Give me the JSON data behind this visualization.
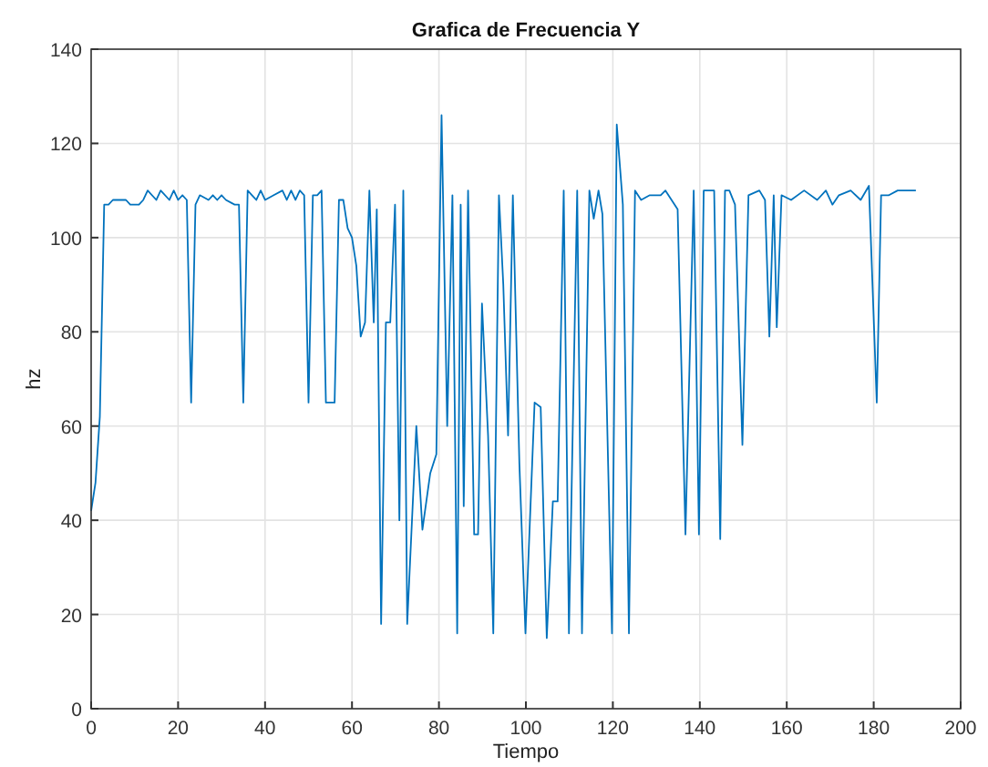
{
  "chart_data": {
    "type": "line",
    "title": "Grafica de Frecuencia Y",
    "xlabel": "Tiempo",
    "ylabel": "hz",
    "xlim": [
      0,
      200
    ],
    "xticks": [
      0,
      20,
      40,
      60,
      80,
      100,
      120,
      140,
      160,
      180,
      200
    ],
    "ylim": [
      0,
      140
    ],
    "yticks": [
      0,
      20,
      40,
      60,
      80,
      100,
      120,
      140
    ],
    "grid": true,
    "series": [
      {
        "color": "#0072bd",
        "x": [
          0,
          1,
          2,
          3,
          4,
          5,
          7,
          8,
          9,
          11,
          12,
          13,
          15,
          16,
          18,
          19,
          20,
          21,
          22,
          23,
          24,
          25,
          27,
          28,
          29,
          30,
          31,
          33,
          34,
          35,
          36,
          37,
          38,
          39,
          40,
          42,
          44,
          45,
          46,
          47,
          48,
          49,
          50,
          51,
          52,
          53,
          54,
          55,
          56,
          57,
          58,
          59,
          60,
          61,
          62,
          63,
          64,
          65,
          65.7,
          66.7,
          67.8,
          68.8,
          69.9,
          70.9,
          71.8,
          72.7,
          74.8,
          76.2,
          78,
          79.4,
          80.6,
          81.9,
          83.1,
          84.2,
          85,
          85.7,
          86.7,
          88.1,
          89,
          89.9,
          91.3,
          92.5,
          93.8,
          94.8,
          95.9,
          97,
          98.5,
          99.9,
          102,
          103.4,
          104.8,
          106.2,
          107.3,
          108.7,
          109.9,
          111.8,
          112.9,
          114.6,
          115.6,
          116.7,
          117.6,
          119.8,
          120.9,
          122.3,
          123.7,
          125.1,
          126.5,
          128.5,
          131,
          132.1,
          134.9,
          136.7,
          138.6,
          139.8,
          140.9,
          143.3,
          144.7,
          145.8,
          146.8,
          148.1,
          149.8,
          151.2,
          153.7,
          155,
          156,
          157,
          157.7,
          158.8,
          161,
          164,
          167,
          169,
          170.5,
          172,
          174.7,
          177,
          178.9,
          180.7,
          181.7,
          183.5,
          185.5,
          187.6,
          189.7
        ],
        "values": [
          42,
          48,
          62,
          107,
          107,
          108,
          108,
          108,
          107,
          107,
          108,
          110,
          108,
          110,
          108,
          110,
          108,
          109,
          108,
          65,
          107,
          109,
          108,
          109,
          108,
          109,
          108,
          107,
          107,
          65,
          110,
          109,
          108,
          110,
          108,
          109,
          110,
          108,
          110,
          108,
          110,
          109,
          65,
          109,
          109,
          110,
          65,
          65,
          65,
          108,
          108,
          102,
          100,
          94,
          79,
          82,
          110,
          82,
          106,
          18,
          82,
          82,
          107,
          40,
          110,
          18,
          60,
          38,
          50,
          54,
          126,
          60,
          109,
          16,
          107,
          43,
          110,
          37,
          37,
          86,
          58,
          16,
          109,
          90,
          58,
          109,
          52,
          16,
          65,
          64,
          15,
          44,
          44,
          110,
          16,
          110,
          16,
          110,
          104,
          110,
          105,
          16,
          124,
          107,
          16,
          110,
          108,
          109,
          109,
          110,
          106,
          37,
          110,
          37,
          110,
          110,
          36,
          110,
          110,
          107,
          56,
          109,
          110,
          108,
          79,
          109,
          81,
          109,
          108,
          110,
          108,
          110,
          107,
          109,
          110,
          108,
          111,
          65,
          109,
          109,
          110,
          110,
          110
        ]
      }
    ]
  }
}
